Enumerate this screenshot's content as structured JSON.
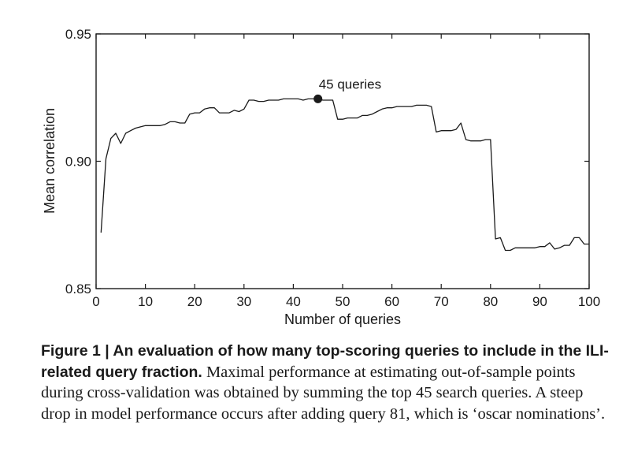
{
  "chart_data": {
    "type": "line",
    "title": "",
    "xlabel": "Number of queries",
    "ylabel": "Mean correlation",
    "xlim": [
      0,
      100
    ],
    "ylim": [
      0.85,
      0.95
    ],
    "xticks": [
      0,
      10,
      20,
      30,
      40,
      50,
      60,
      70,
      80,
      90,
      100
    ],
    "xtick_labels": [
      "0",
      "10",
      "20",
      "30",
      "40",
      "50",
      "60",
      "70",
      "80",
      "90",
      "100"
    ],
    "yticks": [
      0.85,
      0.9,
      0.95
    ],
    "ytick_labels": [
      "0.85",
      "0.90",
      "0.95"
    ],
    "grid": false,
    "legend": "none",
    "series": [
      {
        "name": "",
        "color": "#1a1a1a",
        "x": [
          1,
          2,
          3,
          4,
          5,
          6,
          7,
          8,
          9,
          10,
          11,
          12,
          13,
          14,
          15,
          16,
          17,
          18,
          19,
          20,
          21,
          22,
          23,
          24,
          25,
          26,
          27,
          28,
          29,
          30,
          31,
          32,
          33,
          34,
          35,
          36,
          37,
          38,
          39,
          40,
          41,
          42,
          43,
          44,
          45,
          46,
          47,
          48,
          49,
          50,
          51,
          52,
          53,
          54,
          55,
          56,
          57,
          58,
          59,
          60,
          61,
          62,
          63,
          64,
          65,
          66,
          67,
          68,
          69,
          70,
          71,
          72,
          73,
          74,
          75,
          76,
          77,
          78,
          79,
          80,
          81,
          82,
          83,
          84,
          85,
          86,
          87,
          88,
          89,
          90,
          91,
          92,
          93,
          94,
          95,
          96,
          97,
          98,
          99,
          100
        ],
        "y": [
          0.872,
          0.901,
          0.909,
          0.911,
          0.907,
          0.911,
          0.912,
          0.913,
          0.9135,
          0.914,
          0.914,
          0.914,
          0.914,
          0.9145,
          0.9155,
          0.9155,
          0.915,
          0.915,
          0.9185,
          0.919,
          0.919,
          0.9205,
          0.921,
          0.921,
          0.919,
          0.919,
          0.919,
          0.92,
          0.9195,
          0.9205,
          0.924,
          0.924,
          0.9235,
          0.9235,
          0.924,
          0.924,
          0.924,
          0.9245,
          0.9245,
          0.9245,
          0.9245,
          0.924,
          0.9245,
          0.9245,
          0.9245,
          0.924,
          0.924,
          0.924,
          0.9165,
          0.9165,
          0.917,
          0.917,
          0.917,
          0.918,
          0.918,
          0.9185,
          0.9195,
          0.9205,
          0.921,
          0.921,
          0.9215,
          0.9215,
          0.9215,
          0.9215,
          0.922,
          0.922,
          0.922,
          0.9215,
          0.9115,
          0.912,
          0.912,
          0.912,
          0.9125,
          0.915,
          0.9085,
          0.908,
          0.908,
          0.908,
          0.9085,
          0.9085,
          0.8695,
          0.87,
          0.865,
          0.865,
          0.866,
          0.866,
          0.866,
          0.866,
          0.866,
          0.8665,
          0.8665,
          0.868,
          0.8655,
          0.866,
          0.867,
          0.867,
          0.87,
          0.87,
          0.8675,
          0.8675
        ]
      }
    ],
    "highlight": {
      "x": 45,
      "y": 0.9245,
      "label": "45 queries"
    }
  },
  "caption": {
    "heading": "Figure 1 | An evaluation of how many top-scoring queries to include in the ILI-related query fraction.",
    "body": "Maximal performance at estimating out-of-sample points during cross-validation was obtained by summing the top 45 search queries. A steep drop in model performance occurs after adding query 81, which is ‘oscar nominations’."
  }
}
